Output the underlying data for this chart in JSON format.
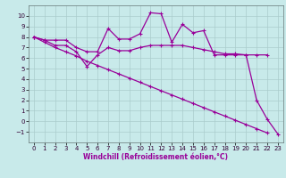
{
  "xlabel": "Windchill (Refroidissement éolien,°C)",
  "x": [
    0,
    1,
    2,
    3,
    4,
    5,
    6,
    7,
    8,
    9,
    10,
    11,
    12,
    13,
    14,
    15,
    16,
    17,
    18,
    19,
    20,
    21,
    22,
    23
  ],
  "line1": [
    8.0,
    7.7,
    7.7,
    7.7,
    7.0,
    6.6,
    6.6,
    8.8,
    7.8,
    7.8,
    8.3,
    10.3,
    10.2,
    7.5,
    9.2,
    8.4,
    8.6,
    6.3,
    6.3,
    6.3,
    6.3,
    2.0,
    0.2,
    -1.2
  ],
  "line2": [
    8.0,
    7.7,
    7.2,
    7.2,
    6.6,
    5.2,
    6.3,
    7.0,
    6.7,
    6.7,
    7.0,
    7.2,
    7.2,
    7.2,
    7.2,
    7.0,
    6.8,
    6.6,
    6.4,
    6.4,
    6.3,
    6.3,
    6.3,
    null
  ],
  "line3": [
    8.0,
    7.5,
    7.0,
    6.6,
    6.2,
    5.7,
    5.3,
    4.9,
    4.5,
    4.1,
    3.7,
    3.3,
    2.9,
    2.5,
    2.1,
    1.7,
    1.3,
    0.9,
    0.5,
    0.1,
    -0.3,
    -0.7,
    -1.1,
    null
  ],
  "line_color": "#990099",
  "bg_color": "#c8eaea",
  "grid_color": "#aacccc",
  "ylim": [
    -2,
    11
  ],
  "yticks": [
    -1,
    0,
    1,
    2,
    3,
    4,
    5,
    6,
    7,
    8,
    9,
    10
  ],
  "marker": "+",
  "markersize": 3,
  "linewidth": 0.9,
  "tick_fontsize": 5,
  "xlabel_fontsize": 5.5
}
